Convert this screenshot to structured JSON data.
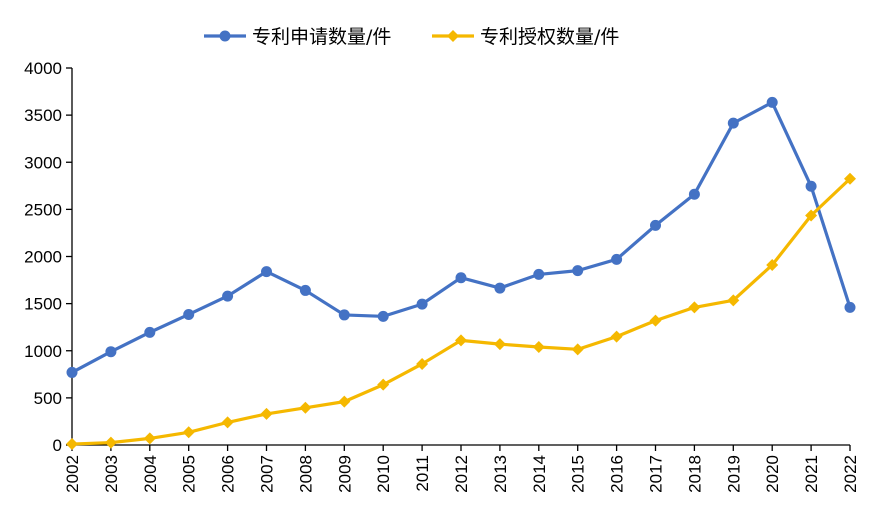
{
  "chart_data": {
    "type": "line",
    "title": "",
    "xlabel": "",
    "ylabel": "",
    "categories": [
      "2002",
      "2003",
      "2004",
      "2005",
      "2006",
      "2007",
      "2008",
      "2009",
      "2010",
      "2011",
      "2012",
      "2013",
      "2014",
      "2015",
      "2016",
      "2017",
      "2018",
      "2019",
      "2020",
      "2021",
      "2022"
    ],
    "ylim": [
      0,
      4000
    ],
    "yticks": [
      0,
      500,
      1000,
      1500,
      2000,
      2500,
      3000,
      3500,
      4000
    ],
    "legend_position": "top",
    "grid": false,
    "series": [
      {
        "name": "专利申请数量/件",
        "color": "#4472C4",
        "marker": "circle",
        "values": [
          770,
          990,
          1195,
          1385,
          1580,
          1840,
          1640,
          1380,
          1365,
          1495,
          1775,
          1665,
          1810,
          1850,
          1970,
          2330,
          2660,
          3415,
          3635,
          2745,
          1460
        ]
      },
      {
        "name": "专利授权数量/件",
        "color": "#F5B800",
        "marker": "diamond",
        "values": [
          10,
          25,
          70,
          135,
          240,
          330,
          395,
          460,
          640,
          860,
          1110,
          1070,
          1040,
          1015,
          1150,
          1320,
          1460,
          1535,
          1910,
          2435,
          2825
        ]
      }
    ]
  }
}
